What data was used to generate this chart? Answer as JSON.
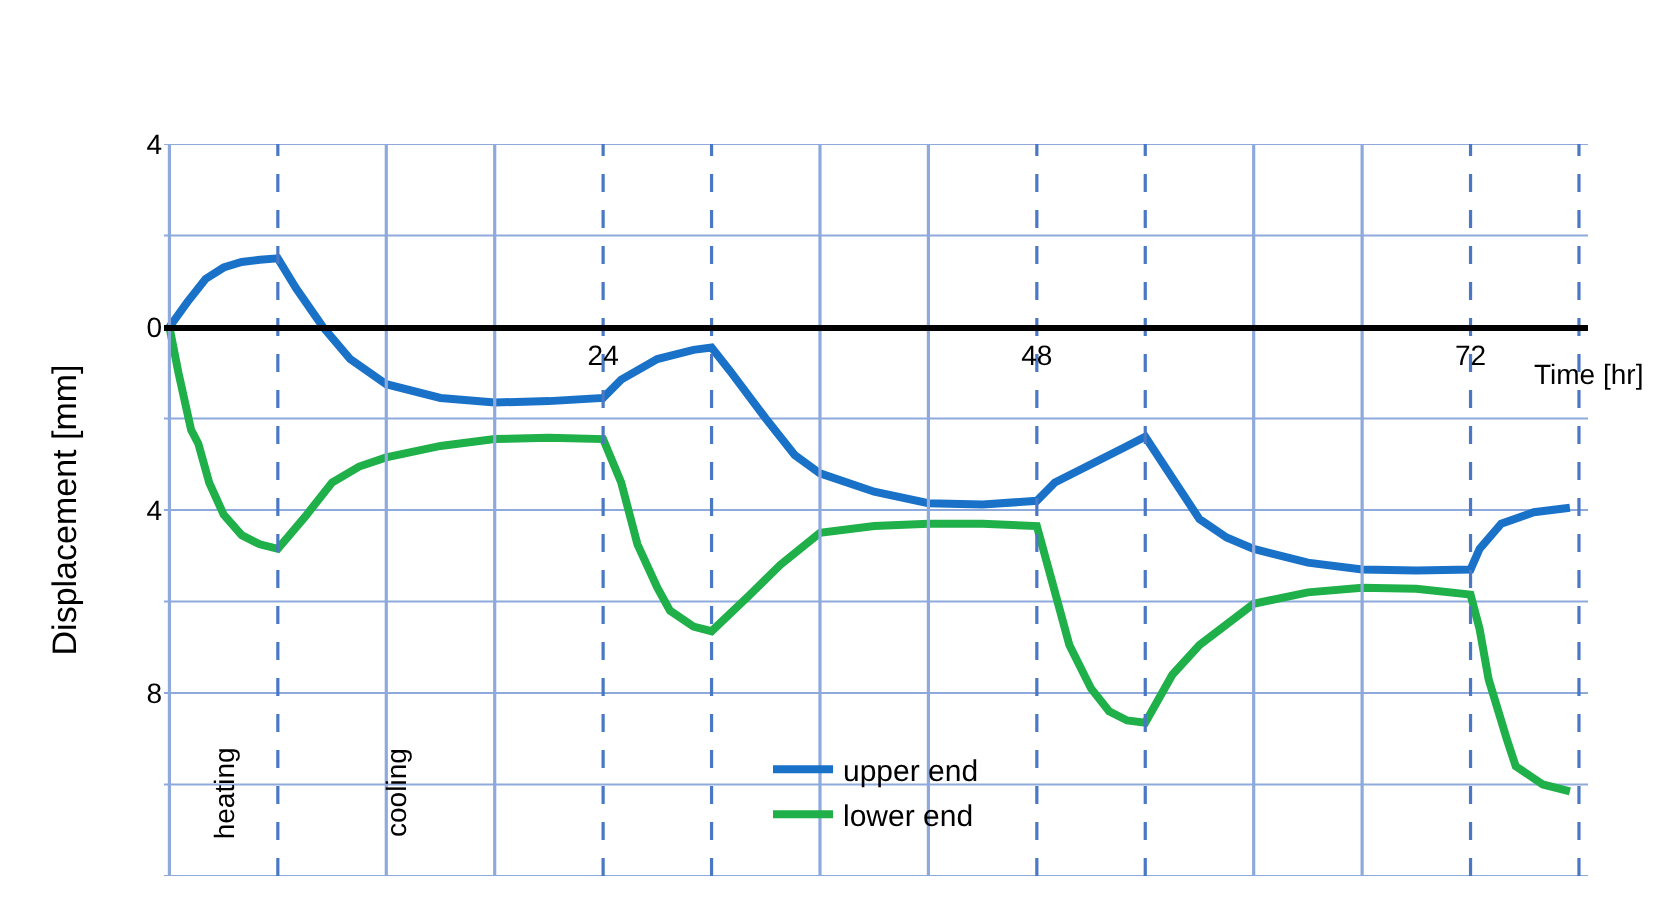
{
  "chart_data": {
    "type": "line",
    "xlabel": "Time [hr]",
    "ylabel": "Displacement [mm]",
    "xlim": [
      -0.3,
      78.5
    ],
    "ylim": [
      -12,
      4
    ],
    "xticks": [
      24,
      48,
      72
    ],
    "yticks": [
      {
        "value": -12,
        "label": null
      },
      {
        "value": -10,
        "label": null
      },
      {
        "value": -8,
        "label": "8"
      },
      {
        "value": -6,
        "label": null
      },
      {
        "value": -4,
        "label": "4"
      },
      {
        "value": -2,
        "label": null
      },
      0,
      {
        "value": 2,
        "label": null
      },
      4
    ],
    "grid": "y",
    "legend": "bottom",
    "marker": "none",
    "line_style": "solid",
    "series": [
      {
        "name": "upper end",
        "color": "#1a72c8",
        "x": [
          0,
          1,
          2,
          3,
          4,
          5,
          6,
          7,
          8.5,
          10,
          12,
          15,
          18,
          21,
          24,
          25,
          27,
          29,
          30,
          31,
          33,
          34.6,
          36,
          39,
          42,
          45,
          48,
          49,
          51,
          53,
          54,
          55,
          57,
          58.5,
          60,
          63,
          66,
          69,
          72,
          72.5,
          73.7,
          75.5,
          77.5
        ],
        "values": [
          0,
          0.55,
          1.05,
          1.3,
          1.42,
          1.47,
          1.5,
          0.85,
          0,
          -0.7,
          -1.25,
          -1.55,
          -1.65,
          -1.62,
          -1.55,
          -1.15,
          -0.7,
          -0.5,
          -0.45,
          -0.95,
          -2.0,
          -2.8,
          -3.2,
          -3.6,
          -3.85,
          -3.88,
          -3.8,
          -3.4,
          -3.0,
          -2.6,
          -2.4,
          -3.0,
          -4.2,
          -4.6,
          -4.85,
          -5.15,
          -5.3,
          -5.32,
          -5.3,
          -4.85,
          -4.3,
          -4.05,
          -3.95
        ]
      },
      {
        "name": "lower end",
        "color": "#1fb04a",
        "x": [
          0,
          0.5,
          1.2,
          1.6,
          2.2,
          3,
          4,
          5,
          6,
          7.5,
          9,
          10.5,
          12,
          15,
          18,
          21,
          24,
          25,
          25.9,
          27,
          27.7,
          29,
          30,
          32,
          33.8,
          36,
          39,
          42,
          45,
          48,
          48.8,
          49.8,
          51,
          52,
          53,
          54,
          55.5,
          57,
          60,
          63,
          66,
          69,
          72,
          72.5,
          73,
          74,
          74.5,
          76,
          77.5
        ],
        "values": [
          0,
          -1.0,
          -2.25,
          -2.55,
          -3.4,
          -4.1,
          -4.55,
          -4.75,
          -4.85,
          -4.15,
          -3.4,
          -3.05,
          -2.85,
          -2.6,
          -2.45,
          -2.42,
          -2.45,
          -3.4,
          -4.75,
          -5.7,
          -6.2,
          -6.55,
          -6.65,
          -5.9,
          -5.2,
          -4.5,
          -4.35,
          -4.3,
          -4.3,
          -4.35,
          -5.5,
          -6.95,
          -7.9,
          -8.4,
          -8.6,
          -8.65,
          -7.6,
          -6.95,
          -6.05,
          -5.8,
          -5.7,
          -5.72,
          -5.85,
          -6.6,
          -7.7,
          -9.0,
          -9.6,
          -10.0,
          -10.15
        ]
      }
    ],
    "ref_lines": [
      {
        "axis": "x",
        "value": 0,
        "line_style": "solid",
        "color": "#8ea9db"
      },
      {
        "axis": "x",
        "value": 12,
        "line_style": "solid",
        "color": "#8ea9db"
      },
      {
        "axis": "x",
        "value": 18,
        "line_style": "solid",
        "color": "#8ea9db"
      },
      {
        "axis": "x",
        "value": 36,
        "line_style": "solid",
        "color": "#8ea9db"
      },
      {
        "axis": "x",
        "value": 42,
        "line_style": "solid",
        "color": "#8ea9db"
      },
      {
        "axis": "x",
        "value": 60,
        "line_style": "solid",
        "color": "#8ea9db"
      },
      {
        "axis": "x",
        "value": 66,
        "line_style": "solid",
        "color": "#8ea9db"
      },
      {
        "axis": "x",
        "value": 6,
        "line_style": "dashed",
        "color": "#4a78c4"
      },
      {
        "axis": "x",
        "value": 24,
        "line_style": "dashed",
        "color": "#4a78c4"
      },
      {
        "axis": "x",
        "value": 30,
        "line_style": "dashed",
        "color": "#4a78c4"
      },
      {
        "axis": "x",
        "value": 48,
        "line_style": "dashed",
        "color": "#4a78c4"
      },
      {
        "axis": "x",
        "value": 54,
        "line_style": "dashed",
        "color": "#4a78c4"
      },
      {
        "axis": "x",
        "value": 72,
        "line_style": "dashed",
        "color": "#4a78c4"
      },
      {
        "axis": "x",
        "value": 78,
        "line_style": "dashed",
        "color": "#4a78c4"
      }
    ],
    "annotations": [
      "heating",
      "cooling"
    ]
  }
}
